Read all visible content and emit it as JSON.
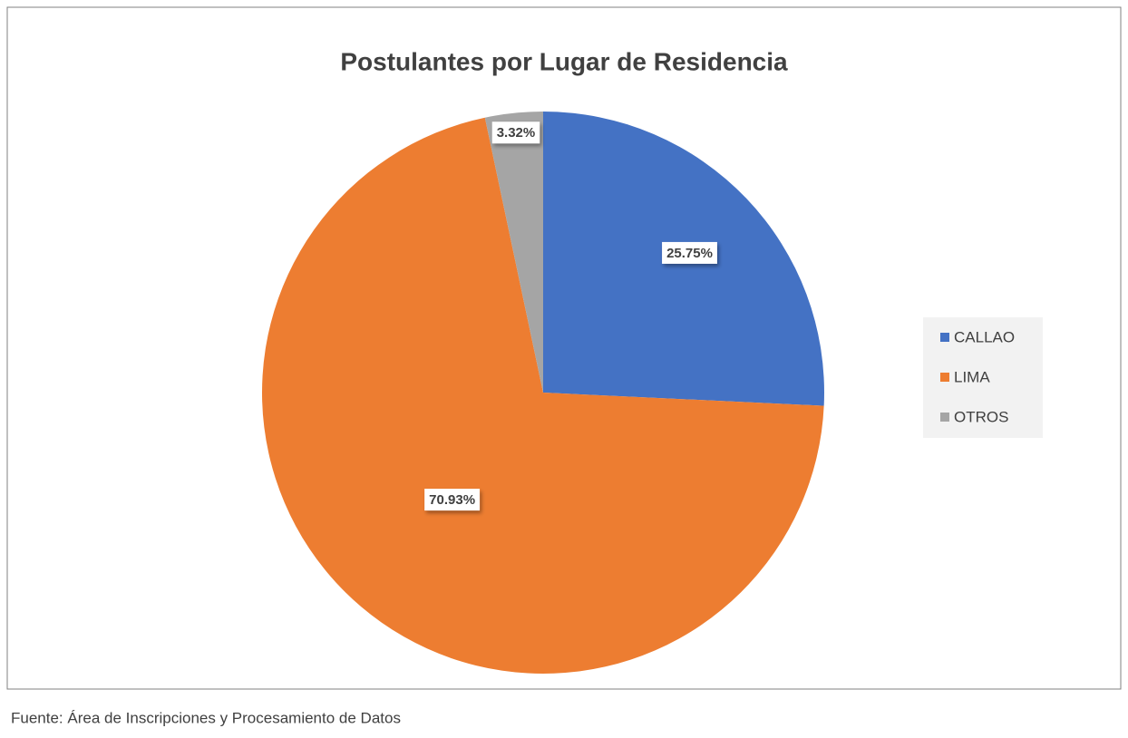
{
  "chart_data": {
    "type": "pie",
    "title": "Postulantes por Lugar de Residencia",
    "categories": [
      "CALLAO",
      "LIMA",
      "OTROS"
    ],
    "values": [
      25.75,
      70.93,
      3.32
    ],
    "value_labels": [
      "25.75%",
      "70.93%",
      "3.32%"
    ],
    "colors": [
      "#4472c4",
      "#ed7d31",
      "#a5a5a5"
    ],
    "legend": "right",
    "source": "Fuente: Área de Inscripciones y Procesamiento de Datos"
  }
}
